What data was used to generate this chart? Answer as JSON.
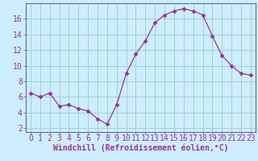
{
  "x": [
    0,
    1,
    2,
    3,
    4,
    5,
    6,
    7,
    8,
    9,
    10,
    11,
    12,
    13,
    14,
    15,
    16,
    17,
    18,
    19,
    20,
    21,
    22,
    23
  ],
  "y": [
    6.5,
    6.0,
    6.5,
    4.8,
    5.0,
    4.5,
    4.2,
    3.2,
    2.5,
    5.0,
    9.0,
    11.5,
    13.2,
    15.5,
    16.5,
    17.0,
    17.3,
    17.0,
    16.5,
    13.8,
    11.3,
    10.0,
    9.0,
    8.8
  ],
  "line_color": "#993399",
  "marker": "D",
  "marker_size": 2.5,
  "bg_color": "#cceeff",
  "grid_color": "#99cccc",
  "xlabel": "Windchill (Refroidissement éolien,°C)",
  "ylabel": "",
  "title": "",
  "xlim": [
    -0.5,
    23.5
  ],
  "ylim": [
    1.5,
    18.0
  ],
  "yticks": [
    2,
    4,
    6,
    8,
    10,
    12,
    14,
    16
  ],
  "xticks": [
    0,
    1,
    2,
    3,
    4,
    5,
    6,
    7,
    8,
    9,
    10,
    11,
    12,
    13,
    14,
    15,
    16,
    17,
    18,
    19,
    20,
    21,
    22,
    23
  ],
  "xlabel_fontsize": 7,
  "tick_fontsize": 7,
  "label_color": "#993399",
  "spine_color": "#666699"
}
